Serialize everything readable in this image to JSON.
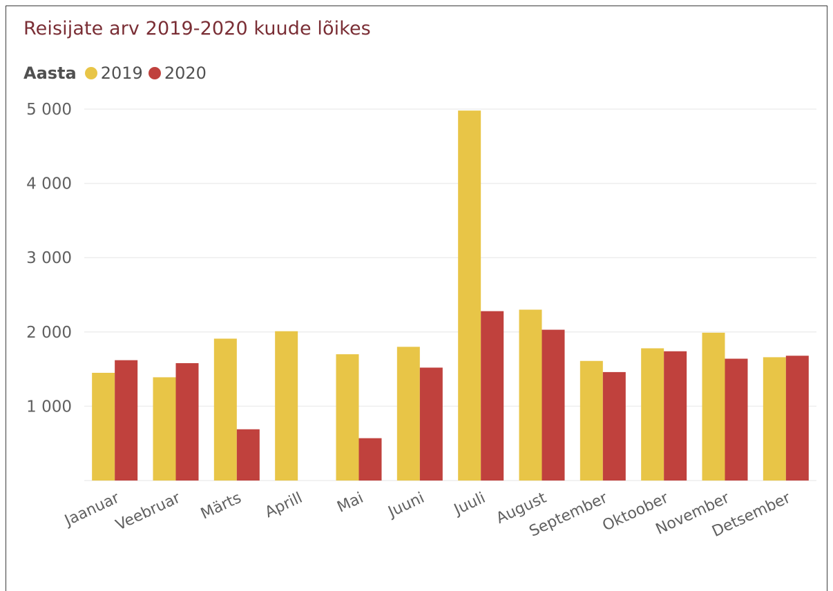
{
  "colors": {
    "y2019": "#e8c547",
    "y2020": "#c0413d",
    "title": "#7a2e35",
    "grid": "#eeeeee",
    "tick": "#606060"
  },
  "legend": {
    "title": "Aasta",
    "items": [
      "2019",
      "2020"
    ]
  },
  "chart_data": {
    "type": "bar",
    "title": "Reisijate arv 2019-2020 kuude lõikes",
    "xlabel": "",
    "ylabel": "",
    "ylim": [
      0,
      5000
    ],
    "yticks": [
      1000,
      2000,
      3000,
      4000,
      5000
    ],
    "ytick_labels": [
      "1 000",
      "2 000",
      "3 000",
      "4 000",
      "5 000"
    ],
    "categories": [
      "Jaanuar",
      "Veebruar",
      "Märts",
      "Aprill",
      "Mai",
      "Juuni",
      "Juuli",
      "August",
      "September",
      "Oktoober",
      "November",
      "Detsember"
    ],
    "series": [
      {
        "name": "2019",
        "values": [
          1450,
          1390,
          1910,
          2010,
          1700,
          1800,
          4980,
          2300,
          1610,
          1780,
          1990,
          1660
        ]
      },
      {
        "name": "2020",
        "values": [
          1620,
          1580,
          690,
          null,
          570,
          1520,
          2280,
          2030,
          1460,
          1740,
          1640,
          1680
        ]
      }
    ],
    "grid": true,
    "legend_position": "top-left"
  }
}
